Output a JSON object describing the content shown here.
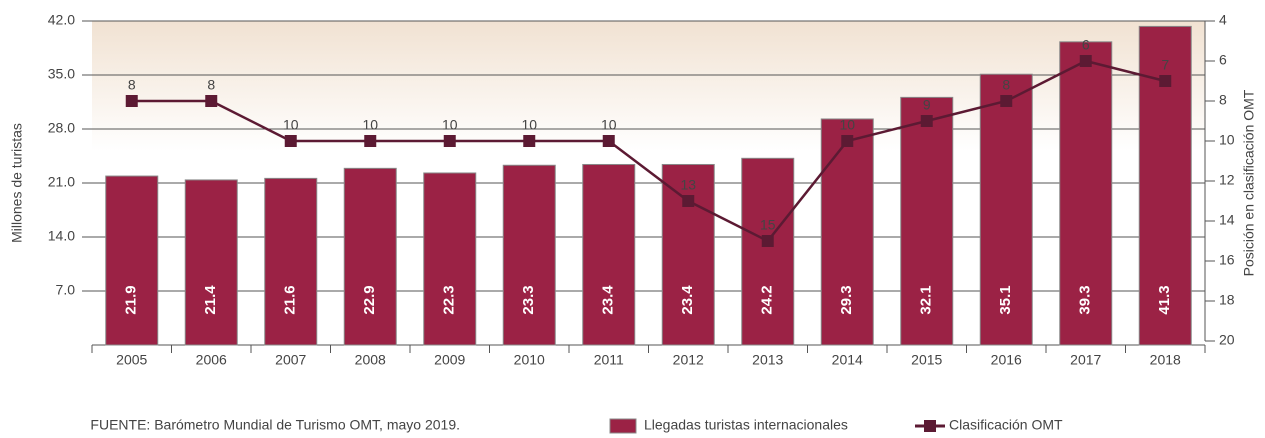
{
  "chart_data": {
    "type": "bar",
    "categories": [
      "2005",
      "2006",
      "2007",
      "2008",
      "2009",
      "2010",
      "2011",
      "2012",
      "2013",
      "2014",
      "2015",
      "2016",
      "2017",
      "2018"
    ],
    "series": [
      {
        "name": "Llegadas turistas internacionales",
        "type": "bar",
        "color": "#9b2245",
        "values": [
          21.9,
          21.4,
          21.6,
          22.9,
          22.3,
          23.3,
          23.4,
          23.4,
          24.2,
          29.3,
          32.1,
          35.1,
          39.3,
          41.3
        ]
      },
      {
        "name": "Clasificación OMT",
        "type": "line",
        "color": "#5c1a33",
        "axis": "y2",
        "values": [
          8,
          8,
          10,
          10,
          10,
          10,
          10,
          13,
          15,
          10,
          9,
          8,
          6,
          7
        ]
      }
    ],
    "ylabel": "Millones de turistas",
    "y2label": "Posición en clasificación OMT",
    "ylim": [
      0,
      42
    ],
    "yticks": [
      {
        "value": 7,
        "label": "7.0"
      },
      {
        "value": 14,
        "label": "14.0"
      },
      {
        "value": 21,
        "label": "21.0"
      },
      {
        "value": 28,
        "label": "28.0"
      },
      {
        "value": 35,
        "label": "35.0"
      },
      {
        "value": 42,
        "label": "42.0"
      }
    ],
    "y2lim": [
      20,
      4
    ],
    "y2ticks": [
      4,
      6,
      8,
      10,
      12,
      14,
      16,
      18,
      20
    ],
    "grid": true,
    "source": "FUENTE: Barómetro Mundial de Turismo OMT, mayo 2019."
  }
}
